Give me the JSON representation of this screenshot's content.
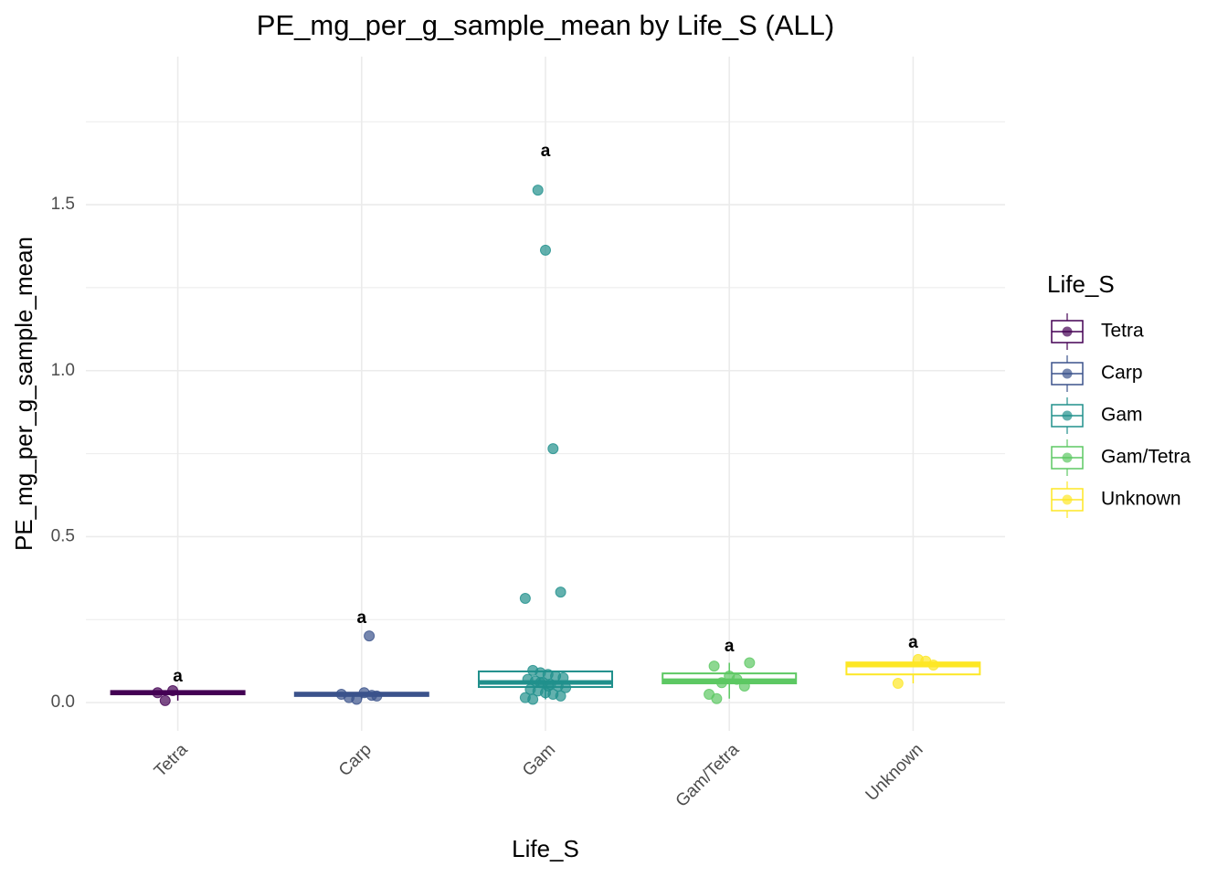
{
  "chart_data": {
    "type": "box",
    "title": "PE_mg_per_g_sample_mean by Life_S (ALL)",
    "x_label": "Life_S",
    "y_label": "PE_mg_per_g_sample_mean",
    "legend_title": "Life_S",
    "legend_position": "right",
    "grid": true,
    "categories": [
      "Tetra",
      "Carp",
      "Gam",
      "Gam/Tetra",
      "Unknown"
    ],
    "ylim": [
      -0.085,
      1.946
    ],
    "yticks": [
      {
        "value": 0,
        "label": "0.0"
      },
      0.5,
      {
        "value": 1,
        "label": "1.0"
      },
      1.5
    ],
    "minor_yticks": [
      0.25,
      0.75,
      1.25,
      1.75
    ],
    "series": [
      {
        "name": "Tetra",
        "color": "#440154",
        "box": {
          "whisker_low": 0.006,
          "q1": 0.025,
          "median": 0.03,
          "q3": 0.035,
          "whisker_high": 0.036
        },
        "points": [
          0.03,
          0.006,
          0.036
        ],
        "letter": {
          "text": "a",
          "y": 0.077
        }
      },
      {
        "name": "Carp",
        "color": "#3b528b",
        "box": {
          "whisker_low": 0.01,
          "q1": 0.02,
          "median": 0.025,
          "q3": 0.03,
          "whisker_high": 0.03
        },
        "points": [
          0.201,
          0.02,
          0.025,
          0.015,
          0.01,
          0.03,
          0.022
        ],
        "letter": {
          "text": "a",
          "y": 0.253
        }
      },
      {
        "name": "Gam",
        "color": "#21908c",
        "box": {
          "whisker_low": 0.01,
          "q1": 0.047,
          "median": 0.061,
          "q3": 0.094,
          "whisker_high": 0.097
        },
        "points": [
          1.544,
          1.363,
          0.765,
          0.333,
          0.314,
          0.097,
          0.09,
          0.085,
          0.08,
          0.075,
          0.07,
          0.065,
          0.06,
          0.055,
          0.05,
          0.045,
          0.04,
          0.035,
          0.03,
          0.025,
          0.02,
          0.015,
          0.01,
          0.06,
          0.05
        ],
        "letter": {
          "text": "a",
          "y": 1.66
        }
      },
      {
        "name": "Gam/Tetra",
        "color": "#5dc863",
        "box": {
          "whisker_low": 0.012,
          "q1": 0.058,
          "median": 0.066,
          "q3": 0.088,
          "whisker_high": 0.12
        },
        "points": [
          0.12,
          0.11,
          0.06,
          0.08,
          0.07,
          0.05,
          0.025,
          0.012
        ],
        "letter": {
          "text": "a",
          "y": 0.168
        }
      },
      {
        "name": "Unknown",
        "color": "#fde725",
        "box": {
          "whisker_low": 0.058,
          "q1": 0.085,
          "median": 0.113,
          "q3": 0.121,
          "whisker_high": 0.13
        },
        "points": [
          0.13,
          0.125,
          0.113,
          0.058
        ],
        "letter": {
          "text": "a",
          "y": 0.179
        }
      }
    ]
  }
}
